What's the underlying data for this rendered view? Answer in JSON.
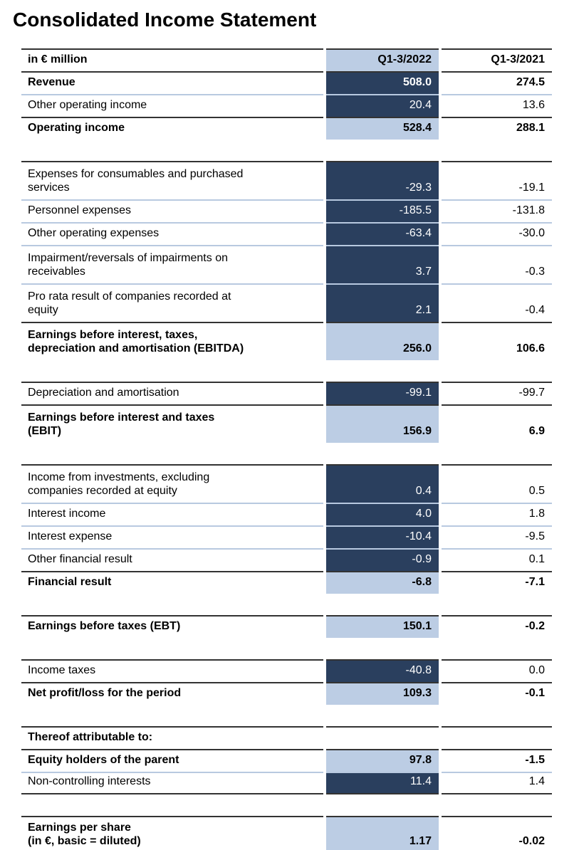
{
  "title": "Consolidated Income Statement",
  "colors": {
    "navy": "#2a3f5e",
    "light_blue": "#bccde4",
    "dark_line": "#333333",
    "light_line": "#b8c9e0",
    "text": "#000000",
    "navy_text": "#ffffff"
  },
  "table": {
    "columns": [
      "in € million",
      "Q1-3/2022",
      "Q1-3/2021"
    ],
    "rows": [
      {
        "header": true,
        "label": "in € million",
        "v2022": "Q1-3/2022",
        "v2021": "Q1-3/2021",
        "bold": true,
        "hl": "light",
        "bt": "dark"
      },
      {
        "label": "Revenue",
        "v2022": "508.0",
        "v2021": "274.5",
        "bold": true,
        "hl": "navy",
        "bt": "dark"
      },
      {
        "label": "Other operating income",
        "v2022": "20.4",
        "v2021": "13.6",
        "bold": false,
        "hl": "navy",
        "bt": "light"
      },
      {
        "label": "Operating income",
        "v2022": "528.4",
        "v2021": "288.1",
        "bold": true,
        "hl": "light",
        "bt": "dark"
      },
      {
        "type": "spacer"
      },
      {
        "label": "Expenses for consumables and purchased\nservices",
        "v2022": "-29.3",
        "v2021": "-19.1",
        "bold": false,
        "hl": "navy",
        "bt": "dark"
      },
      {
        "label": "Personnel expenses",
        "v2022": "-185.5",
        "v2021": "-131.8",
        "bold": false,
        "hl": "navy",
        "bt": "light"
      },
      {
        "label": "Other operating expenses",
        "v2022": "-63.4",
        "v2021": "-30.0",
        "bold": false,
        "hl": "navy",
        "bt": "light"
      },
      {
        "label": "Impairment/reversals of impairments on\nreceivables",
        "v2022": "3.7",
        "v2021": "-0.3",
        "bold": false,
        "hl": "navy",
        "bt": "light"
      },
      {
        "label": "Pro rata result of companies recorded at\nequity",
        "v2022": "2.1",
        "v2021": "-0.4",
        "bold": false,
        "hl": "navy",
        "bt": "light"
      },
      {
        "label": "Earnings before interest, taxes,\ndepreciation and amortisation (EBITDA)",
        "v2022": "256.0",
        "v2021": "106.6",
        "bold": true,
        "hl": "light",
        "bt": "dark"
      },
      {
        "type": "spacer"
      },
      {
        "label": "Depreciation and amortisation",
        "v2022": "-99.1",
        "v2021": "-99.7",
        "bold": false,
        "hl": "navy",
        "bt": "dark"
      },
      {
        "label": "Earnings before interest and taxes\n(EBIT)",
        "v2022": "156.9",
        "v2021": "6.9",
        "bold": true,
        "hl": "light",
        "bt": "dark"
      },
      {
        "type": "spacer"
      },
      {
        "label": "Income from investments, excluding\ncompanies recorded at equity",
        "v2022": "0.4",
        "v2021": "0.5",
        "bold": false,
        "hl": "navy",
        "bt": "dark"
      },
      {
        "label": "Interest income",
        "v2022": "4.0",
        "v2021": "1.8",
        "bold": false,
        "hl": "navy",
        "bt": "light"
      },
      {
        "label": "Interest expense",
        "v2022": "-10.4",
        "v2021": "-9.5",
        "bold": false,
        "hl": "navy",
        "bt": "light"
      },
      {
        "label": "Other financial result",
        "v2022": "-0.9",
        "v2021": "0.1",
        "bold": false,
        "hl": "navy",
        "bt": "light"
      },
      {
        "label": "Financial result",
        "v2022": "-6.8",
        "v2021": "-7.1",
        "bold": true,
        "hl": "light",
        "bt": "dark"
      },
      {
        "type": "spacer"
      },
      {
        "label": "Earnings before taxes (EBT)",
        "v2022": "150.1",
        "v2021": "-0.2",
        "bold": true,
        "hl": "light",
        "bt": "dark"
      },
      {
        "type": "spacer"
      },
      {
        "label": "Income taxes",
        "v2022": "-40.8",
        "v2021": "0.0",
        "bold": false,
        "hl": "navy",
        "bt": "dark"
      },
      {
        "label": "Net profit/loss for the period",
        "v2022": "109.3",
        "v2021": "-0.1",
        "bold": true,
        "hl": "light",
        "bt": "dark"
      },
      {
        "type": "spacer"
      },
      {
        "label": "Thereof attributable to:",
        "v2022": "",
        "v2021": "",
        "bold": true,
        "hl": "none",
        "bt": "dark"
      },
      {
        "label": "Equity holders of the parent",
        "v2022": "97.8",
        "v2021": "-1.5",
        "bold": true,
        "hl": "light",
        "bt": "dark"
      },
      {
        "label": "Non-controlling interests",
        "v2022": "11.4",
        "v2021": "1.4",
        "bold": false,
        "hl": "navy",
        "bt": "light",
        "bb": "dark"
      },
      {
        "type": "spacer"
      },
      {
        "label": "Earnings per share\n(in €, basic = diluted)",
        "v2022": "1.17",
        "v2021": "-0.02",
        "bold": true,
        "hl": "light",
        "bt": "dark",
        "bb": "dark"
      }
    ]
  }
}
